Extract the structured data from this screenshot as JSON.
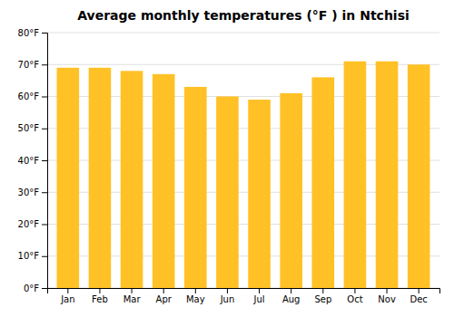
{
  "chart_data": {
    "type": "bar",
    "title": "Average monthly temperatures (°F ) in Ntchisi",
    "categories": [
      "Jan",
      "Feb",
      "Mar",
      "Apr",
      "May",
      "Jun",
      "Jul",
      "Aug",
      "Sep",
      "Oct",
      "Nov",
      "Dec"
    ],
    "values": [
      69,
      69,
      68,
      67,
      63,
      60,
      59,
      61,
      66,
      71,
      71,
      70
    ],
    "color": "#FFC125",
    "ylim": [
      0,
      80
    ],
    "yticks": [
      {
        "value": 0,
        "label": "0°F"
      },
      {
        "value": 10,
        "label": "10°F"
      },
      {
        "value": 20,
        "label": "20°F"
      },
      {
        "value": 30,
        "label": "30°F"
      },
      {
        "value": 40,
        "label": "40°F"
      },
      {
        "value": 50,
        "label": "50°F"
      },
      {
        "value": 60,
        "label": "60°F"
      },
      {
        "value": 70,
        "label": "70°F"
      },
      {
        "value": 80,
        "label": "80°F"
      }
    ],
    "grid": true
  }
}
